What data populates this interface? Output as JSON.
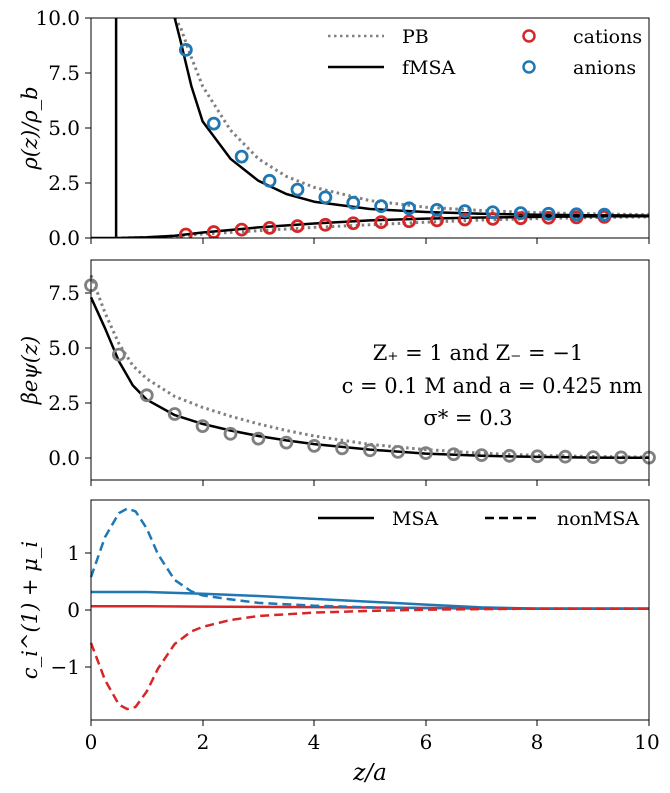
{
  "figure": {
    "xlabel": "z/a",
    "x_ticks": [
      "0",
      "2",
      "4",
      "6",
      "8",
      "10"
    ]
  },
  "colors": {
    "cation": "#d62728",
    "anion": "#1f77b4",
    "pb": "#808080",
    "fmsa": "#000000",
    "marker_gray": "#808080"
  },
  "panels": [
    {
      "ylabel": "ρ(z)/ρ_b",
      "y_ticks": [
        "0.0",
        "2.5",
        "5.0",
        "7.5",
        "10.0"
      ],
      "legend": [
        "PB",
        "fMSA",
        "cations",
        "anions"
      ]
    },
    {
      "ylabel": "βeψ(z)",
      "y_ticks": [
        "0.0",
        "2.5",
        "5.0",
        "7.5"
      ],
      "annotations": [
        "Z₊ = 1 and Z₋ = −1",
        "c = 0.1 M and a = 0.425 nm",
        "σ* = 0.3"
      ]
    },
    {
      "ylabel": "c_i^(1) + μ_i",
      "y_ticks": [
        "−1",
        "0",
        "1"
      ],
      "legend": [
        "MSA",
        "nonMSA"
      ]
    }
  ],
  "chart_data": [
    {
      "type": "line",
      "xlabel": "z/a",
      "ylabel": "ρ(z)/ρ_b",
      "xlim": [
        0,
        10
      ],
      "ylim": [
        0,
        10
      ],
      "grid": false,
      "legend_position": "top-right",
      "series": [
        {
          "name": "PB",
          "style": "dotted-gray",
          "x": [
            1.5,
            1.6,
            1.8,
            2.0,
            2.5,
            3.0,
            3.5,
            4.0,
            5.0,
            6.0,
            7.0,
            8.0,
            9.0,
            10.0
          ],
          "y": [
            10.0,
            9.6,
            8.2,
            6.9,
            4.9,
            3.6,
            2.8,
            2.3,
            1.7,
            1.4,
            1.25,
            1.15,
            1.1,
            1.06
          ]
        },
        {
          "name": "PB",
          "style": "dotted-gray",
          "x": [
            0.45,
            1.0,
            1.5,
            2.0,
            3.0,
            4.0,
            5.0,
            6.0,
            7.0,
            8.0,
            9.0,
            10.0
          ],
          "y": [
            0.0,
            0.02,
            0.08,
            0.18,
            0.33,
            0.48,
            0.6,
            0.72,
            0.82,
            0.88,
            0.93,
            0.96
          ]
        },
        {
          "name": "fMSA",
          "style": "solid-black",
          "x": [
            1.5,
            1.6,
            1.8,
            2.0,
            2.5,
            3.0,
            3.5,
            4.0,
            5.0,
            6.0,
            7.0,
            8.0,
            9.0,
            10.0
          ],
          "y": [
            10.0,
            9.0,
            6.9,
            5.3,
            3.6,
            2.6,
            2.0,
            1.65,
            1.32,
            1.18,
            1.1,
            1.06,
            1.03,
            1.02
          ]
        },
        {
          "name": "fMSA",
          "style": "solid-black",
          "x": [
            0.0,
            0.5,
            1.0,
            1.5,
            2.0,
            3.0,
            4.0,
            5.0,
            6.0,
            7.0,
            8.0,
            9.0,
            10.0
          ],
          "y": [
            0.0,
            0.0,
            0.03,
            0.1,
            0.25,
            0.48,
            0.66,
            0.8,
            0.88,
            0.93,
            0.96,
            0.98,
            0.99
          ]
        },
        {
          "name": "cations",
          "style": "open-circle-red",
          "x": [
            1.7,
            2.2,
            2.7,
            3.2,
            3.7,
            4.2,
            4.7,
            5.2,
            5.7,
            6.2,
            6.7,
            7.2,
            7.7,
            8.2,
            8.7,
            9.2
          ],
          "y": [
            0.16,
            0.27,
            0.38,
            0.46,
            0.54,
            0.6,
            0.67,
            0.72,
            0.76,
            0.8,
            0.84,
            0.87,
            0.9,
            0.92,
            0.94,
            0.96
          ]
        },
        {
          "name": "anions",
          "style": "open-circle-blue",
          "x": [
            1.7,
            2.2,
            2.7,
            3.2,
            3.7,
            4.2,
            4.7,
            5.2,
            5.7,
            6.2,
            6.7,
            7.2,
            7.7,
            8.2,
            8.7,
            9.2
          ],
          "y": [
            8.55,
            5.2,
            3.7,
            2.6,
            2.2,
            1.85,
            1.6,
            1.45,
            1.35,
            1.28,
            1.22,
            1.17,
            1.13,
            1.1,
            1.08,
            1.06
          ]
        }
      ],
      "wall_line_x": 0.45
    },
    {
      "type": "line",
      "xlabel": "z/a",
      "ylabel": "βeψ(z)",
      "xlim": [
        0,
        10
      ],
      "ylim": [
        -1,
        9
      ],
      "grid": false,
      "series": [
        {
          "name": "PB",
          "style": "dotted-gray",
          "x": [
            0.0,
            0.25,
            0.5,
            0.75,
            1.0,
            1.5,
            2.0,
            2.5,
            3.0,
            3.5,
            4.0,
            5.0,
            6.0,
            7.0,
            8.0,
            9.0,
            10.0
          ],
          "y": [
            8.3,
            6.6,
            5.2,
            4.2,
            3.6,
            2.8,
            2.3,
            1.9,
            1.55,
            1.25,
            1.0,
            0.62,
            0.38,
            0.22,
            0.12,
            0.07,
            0.04
          ]
        },
        {
          "name": "fMSA",
          "style": "solid-black",
          "x": [
            0.0,
            0.25,
            0.5,
            0.75,
            1.0,
            1.5,
            2.0,
            2.5,
            3.0,
            3.5,
            4.0,
            5.0,
            6.0,
            7.0,
            8.0,
            9.0,
            10.0
          ],
          "y": [
            7.3,
            5.9,
            4.4,
            3.3,
            2.65,
            1.95,
            1.55,
            1.25,
            1.0,
            0.8,
            0.63,
            0.38,
            0.2,
            0.1,
            0.05,
            0.02,
            0.01
          ]
        },
        {
          "name": "markers",
          "style": "open-circle-gray",
          "x": [
            0.0,
            0.5,
            1.0,
            1.5,
            2.0,
            2.5,
            3.0,
            3.5,
            4.0,
            4.5,
            5.0,
            5.5,
            6.0,
            6.5,
            7.0,
            7.5,
            8.0,
            8.5,
            9.0,
            9.5,
            10.0
          ],
          "y": [
            7.85,
            4.7,
            2.85,
            2.0,
            1.45,
            1.1,
            0.88,
            0.7,
            0.55,
            0.44,
            0.35,
            0.28,
            0.22,
            0.17,
            0.13,
            0.1,
            0.08,
            0.06,
            0.04,
            0.03,
            0.02
          ]
        }
      ]
    },
    {
      "type": "line",
      "xlabel": "z/a",
      "ylabel": "c_i^(1) + μ_i",
      "xlim": [
        0,
        10
      ],
      "ylim": [
        -1.95,
        1.9
      ],
      "grid": false,
      "legend_position": "top-right",
      "series": [
        {
          "name": "MSA",
          "style": "solid-blue",
          "x": [
            0.0,
            1.0,
            2.0,
            3.0,
            4.0,
            5.0,
            6.0,
            7.0,
            8.0,
            10.0
          ],
          "y": [
            0.29,
            0.29,
            0.26,
            0.22,
            0.17,
            0.12,
            0.07,
            0.02,
            0.0,
            0.0
          ]
        },
        {
          "name": "MSA",
          "style": "solid-red",
          "x": [
            0.0,
            1.0,
            2.0,
            3.0,
            4.0,
            5.0,
            6.0,
            7.0,
            8.0,
            10.0
          ],
          "y": [
            0.04,
            0.04,
            0.035,
            0.03,
            0.025,
            0.018,
            0.01,
            0.004,
            0.0,
            0.0
          ]
        },
        {
          "name": "nonMSA",
          "style": "dashed-blue",
          "x": [
            0.0,
            0.25,
            0.5,
            0.65,
            0.8,
            1.0,
            1.2,
            1.5,
            1.8,
            2.0,
            2.5,
            3.0,
            4.0,
            5.0,
            6.0,
            7.0,
            8.0,
            10.0
          ],
          "y": [
            0.55,
            1.25,
            1.67,
            1.75,
            1.7,
            1.4,
            0.95,
            0.5,
            0.3,
            0.23,
            0.16,
            0.1,
            0.05,
            0.02,
            0.01,
            0.0,
            0.0,
            0.0
          ]
        },
        {
          "name": "nonMSA",
          "style": "dashed-red",
          "x": [
            0.0,
            0.25,
            0.5,
            0.65,
            0.8,
            1.0,
            1.2,
            1.5,
            1.8,
            2.0,
            2.5,
            3.0,
            4.0,
            5.0,
            6.0,
            7.0,
            8.0,
            10.0
          ],
          "y": [
            -0.6,
            -1.25,
            -1.68,
            -1.76,
            -1.72,
            -1.45,
            -1.05,
            -0.62,
            -0.4,
            -0.32,
            -0.2,
            -0.13,
            -0.07,
            -0.04,
            -0.02,
            -0.01,
            0.0,
            0.0
          ]
        }
      ]
    }
  ]
}
